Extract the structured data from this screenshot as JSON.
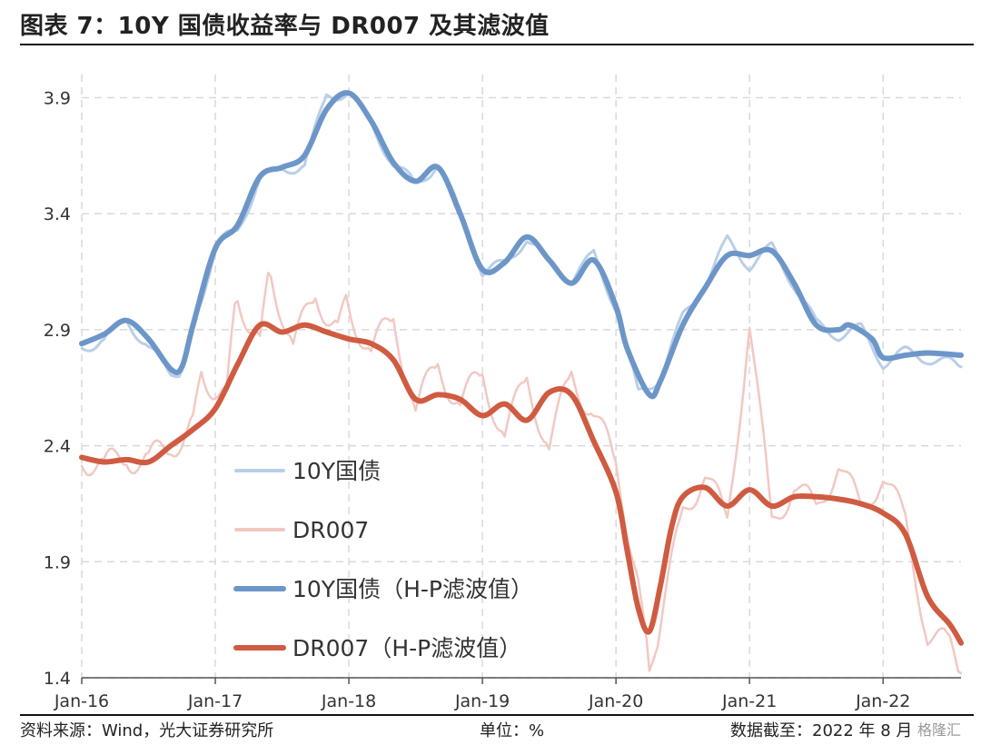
{
  "title": "图表 7：10Y 国债收益率与 DR007 及其滤波值",
  "footer": {
    "source": "资料来源：Wind，光大证券研究所",
    "unit": "单位：%",
    "date": "数据截至：2022 年 8 月",
    "watermark": "格隆汇"
  },
  "chart_data": {
    "type": "line",
    "x_ticks": [
      "Jan-16",
      "Jan-17",
      "Jan-18",
      "Jan-19",
      "Jan-20",
      "Jan-21",
      "Jan-22"
    ],
    "x_range": [
      "2016-01",
      "2022-08"
    ],
    "ylim": [
      1.4,
      4.0
    ],
    "y_ticks": [
      "1.4",
      "1.9",
      "2.4",
      "2.9",
      "3.4",
      "3.9"
    ],
    "grid": true,
    "legend_position": "left-center",
    "series": [
      {
        "name": "10Y国债",
        "color": "#b9cfe8",
        "width": 3,
        "raw": true,
        "points": [
          [
            "2016-01",
            2.82
          ],
          [
            "2016-03",
            2.86
          ],
          [
            "2016-05",
            2.94
          ],
          [
            "2016-07",
            2.83
          ],
          [
            "2016-09",
            2.7
          ],
          [
            "2016-10",
            2.73
          ],
          [
            "2016-12",
            3.05
          ],
          [
            "2017-01",
            3.27
          ],
          [
            "2017-03",
            3.32
          ],
          [
            "2017-05",
            3.56
          ],
          [
            "2017-07",
            3.58
          ],
          [
            "2017-09",
            3.62
          ],
          [
            "2017-11",
            3.9
          ],
          [
            "2018-01",
            3.93
          ],
          [
            "2018-03",
            3.78
          ],
          [
            "2018-05",
            3.62
          ],
          [
            "2018-07",
            3.52
          ],
          [
            "2018-09",
            3.62
          ],
          [
            "2018-11",
            3.4
          ],
          [
            "2019-01",
            3.15
          ],
          [
            "2019-03",
            3.18
          ],
          [
            "2019-05",
            3.3
          ],
          [
            "2019-07",
            3.18
          ],
          [
            "2019-09",
            3.12
          ],
          [
            "2019-11",
            3.22
          ],
          [
            "2020-01",
            3.0
          ],
          [
            "2020-03",
            2.62
          ],
          [
            "2020-05",
            2.7
          ],
          [
            "2020-07",
            2.95
          ],
          [
            "2020-09",
            3.1
          ],
          [
            "2020-11",
            3.28
          ],
          [
            "2021-01",
            3.18
          ],
          [
            "2021-03",
            3.25
          ],
          [
            "2021-05",
            3.1
          ],
          [
            "2021-07",
            2.92
          ],
          [
            "2021-09",
            2.88
          ],
          [
            "2021-11",
            2.9
          ],
          [
            "2022-01",
            2.76
          ],
          [
            "2022-03",
            2.8
          ],
          [
            "2022-05",
            2.78
          ],
          [
            "2022-08",
            2.74
          ]
        ]
      },
      {
        "name": "DR007",
        "color": "#f2c8c2",
        "width": 2.5,
        "raw": true,
        "points": [
          [
            "2016-01",
            2.36
          ],
          [
            "2016-03",
            2.3
          ],
          [
            "2016-05",
            2.36
          ],
          [
            "2016-07",
            2.33
          ],
          [
            "2016-09",
            2.4
          ],
          [
            "2016-11",
            2.5
          ],
          [
            "2016-12",
            2.7
          ],
          [
            "2017-02",
            2.62
          ],
          [
            "2017-03",
            3.05
          ],
          [
            "2017-05",
            2.85
          ],
          [
            "2017-06",
            3.15
          ],
          [
            "2017-08",
            2.82
          ],
          [
            "2017-10",
            3.05
          ],
          [
            "2017-12",
            2.92
          ],
          [
            "2018-01",
            3.0
          ],
          [
            "2018-03",
            2.8
          ],
          [
            "2018-05",
            2.95
          ],
          [
            "2018-07",
            2.55
          ],
          [
            "2018-09",
            2.75
          ],
          [
            "2018-11",
            2.58
          ],
          [
            "2019-01",
            2.7
          ],
          [
            "2019-03",
            2.45
          ],
          [
            "2019-05",
            2.68
          ],
          [
            "2019-07",
            2.4
          ],
          [
            "2019-09",
            2.7
          ],
          [
            "2019-11",
            2.55
          ],
          [
            "2020-01",
            2.3
          ],
          [
            "2020-03",
            1.85
          ],
          [
            "2020-04",
            1.4
          ],
          [
            "2020-05",
            1.65
          ],
          [
            "2020-07",
            2.1
          ],
          [
            "2020-09",
            2.3
          ],
          [
            "2020-11",
            2.05
          ],
          [
            "2021-01",
            2.95
          ],
          [
            "2021-03",
            2.05
          ],
          [
            "2021-05",
            2.25
          ],
          [
            "2021-07",
            2.1
          ],
          [
            "2021-09",
            2.35
          ],
          [
            "2021-11",
            2.1
          ],
          [
            "2022-01",
            2.3
          ],
          [
            "2022-03",
            2.05
          ],
          [
            "2022-05",
            1.6
          ],
          [
            "2022-07",
            1.52
          ],
          [
            "2022-08",
            1.42
          ]
        ]
      },
      {
        "name": "10Y国债（H-P滤波值）",
        "color": "#6d96c8",
        "width": 6,
        "raw": false,
        "points": [
          [
            "2016-01",
            2.84
          ],
          [
            "2016-03",
            2.88
          ],
          [
            "2016-05",
            2.94
          ],
          [
            "2016-07",
            2.86
          ],
          [
            "2016-09",
            2.73
          ],
          [
            "2016-10",
            2.74
          ],
          [
            "2016-11",
            2.92
          ],
          [
            "2017-01",
            3.25
          ],
          [
            "2017-03",
            3.35
          ],
          [
            "2017-05",
            3.56
          ],
          [
            "2017-07",
            3.6
          ],
          [
            "2017-09",
            3.65
          ],
          [
            "2017-11",
            3.85
          ],
          [
            "2018-01",
            3.92
          ],
          [
            "2018-03",
            3.8
          ],
          [
            "2018-05",
            3.62
          ],
          [
            "2018-07",
            3.54
          ],
          [
            "2018-09",
            3.6
          ],
          [
            "2018-11",
            3.4
          ],
          [
            "2019-01",
            3.16
          ],
          [
            "2019-03",
            3.19
          ],
          [
            "2019-05",
            3.3
          ],
          [
            "2019-07",
            3.2
          ],
          [
            "2019-09",
            3.1
          ],
          [
            "2019-11",
            3.2
          ],
          [
            "2020-01",
            3.0
          ],
          [
            "2020-02",
            2.82
          ],
          [
            "2020-04",
            2.62
          ],
          [
            "2020-05",
            2.68
          ],
          [
            "2020-07",
            2.92
          ],
          [
            "2020-09",
            3.08
          ],
          [
            "2020-11",
            3.22
          ],
          [
            "2021-01",
            3.22
          ],
          [
            "2021-03",
            3.24
          ],
          [
            "2021-05",
            3.1
          ],
          [
            "2021-07",
            2.92
          ],
          [
            "2021-09",
            2.9
          ],
          [
            "2021-10",
            2.92
          ],
          [
            "2021-12",
            2.86
          ],
          [
            "2022-01",
            2.78
          ],
          [
            "2022-03",
            2.79
          ],
          [
            "2022-05",
            2.8
          ],
          [
            "2022-08",
            2.79
          ]
        ]
      },
      {
        "name": "DR007（H-P滤波值）",
        "color": "#cf5b41",
        "width": 6,
        "raw": false,
        "points": [
          [
            "2016-01",
            2.35
          ],
          [
            "2016-03",
            2.33
          ],
          [
            "2016-05",
            2.34
          ],
          [
            "2016-07",
            2.33
          ],
          [
            "2016-09",
            2.4
          ],
          [
            "2016-11",
            2.47
          ],
          [
            "2017-01",
            2.56
          ],
          [
            "2017-03",
            2.75
          ],
          [
            "2017-05",
            2.92
          ],
          [
            "2017-07",
            2.89
          ],
          [
            "2017-09",
            2.92
          ],
          [
            "2017-11",
            2.89
          ],
          [
            "2018-01",
            2.86
          ],
          [
            "2018-03",
            2.84
          ],
          [
            "2018-05",
            2.77
          ],
          [
            "2018-07",
            2.6
          ],
          [
            "2018-09",
            2.62
          ],
          [
            "2018-11",
            2.6
          ],
          [
            "2019-01",
            2.53
          ],
          [
            "2019-03",
            2.58
          ],
          [
            "2019-05",
            2.51
          ],
          [
            "2019-07",
            2.63
          ],
          [
            "2019-09",
            2.62
          ],
          [
            "2019-11",
            2.42
          ],
          [
            "2020-01",
            2.2
          ],
          [
            "2020-02",
            1.95
          ],
          [
            "2020-03",
            1.7
          ],
          [
            "2020-04",
            1.6
          ],
          [
            "2020-05",
            1.8
          ],
          [
            "2020-06",
            2.05
          ],
          [
            "2020-07",
            2.18
          ],
          [
            "2020-09",
            2.22
          ],
          [
            "2020-11",
            2.14
          ],
          [
            "2021-01",
            2.21
          ],
          [
            "2021-03",
            2.14
          ],
          [
            "2021-05",
            2.18
          ],
          [
            "2021-07",
            2.18
          ],
          [
            "2021-09",
            2.17
          ],
          [
            "2021-11",
            2.15
          ],
          [
            "2022-01",
            2.11
          ],
          [
            "2022-03",
            2.02
          ],
          [
            "2022-05",
            1.75
          ],
          [
            "2022-07",
            1.63
          ],
          [
            "2022-08",
            1.55
          ]
        ]
      }
    ]
  }
}
